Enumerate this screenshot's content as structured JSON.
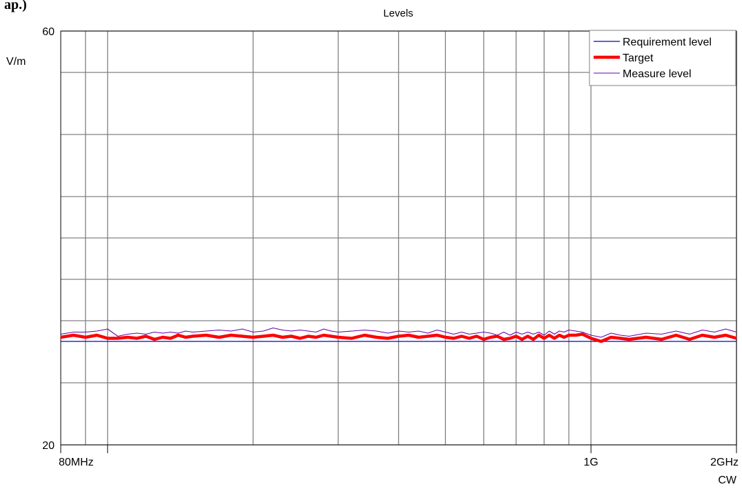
{
  "corner_text": "ap.)",
  "chart_data": {
    "type": "line",
    "title": "Levels",
    "ylabel": "V/m",
    "y_ticks": [
      {
        "v": 20,
        "label": "20"
      },
      {
        "v": 60,
        "label": "60"
      }
    ],
    "ylim": [
      20,
      60
    ],
    "x_scale": "log",
    "xlim": [
      80,
      2000
    ],
    "x_tick_labels": [
      {
        "v": 80,
        "label": "80MHz"
      },
      {
        "v": 1000,
        "label": "1G"
      },
      {
        "v": 2000,
        "label": "2GHz"
      }
    ],
    "x_unit_note": "CW",
    "x_gridlines_mhz": [
      90,
      100,
      200,
      300,
      400,
      500,
      600,
      700,
      800,
      900,
      1000,
      2000
    ],
    "y_gridlines": [
      20,
      26,
      32,
      36,
      40,
      44,
      50,
      56,
      60
    ],
    "legend": {
      "position": "top-right",
      "entries": [
        "Requirement level",
        "Target",
        "Measure level"
      ]
    },
    "colors": {
      "requirement": "#0000cc",
      "target": "#ff0000",
      "measure": "#6a00a8",
      "grid": "#808080"
    },
    "series": [
      {
        "name": "Requirement level",
        "x": [
          80,
          2000
        ],
        "y": [
          30,
          30
        ]
      },
      {
        "name": "Target",
        "x": [
          80,
          85,
          90,
          95,
          100,
          105,
          110,
          115,
          120,
          125,
          130,
          135,
          140,
          145,
          150,
          160,
          170,
          180,
          190,
          200,
          210,
          220,
          230,
          240,
          250,
          260,
          270,
          280,
          290,
          300,
          320,
          340,
          360,
          380,
          400,
          420,
          440,
          460,
          480,
          500,
          520,
          540,
          560,
          580,
          600,
          620,
          640,
          660,
          680,
          700,
          720,
          740,
          760,
          780,
          800,
          820,
          840,
          860,
          880,
          900,
          930,
          960,
          1000,
          1050,
          1100,
          1150,
          1200,
          1300,
          1400,
          1500,
          1600,
          1700,
          1800,
          1900,
          2000
        ],
        "y": [
          30.4,
          30.6,
          30.4,
          30.6,
          30.3,
          30.3,
          30.4,
          30.3,
          30.5,
          30.2,
          30.4,
          30.3,
          30.6,
          30.4,
          30.5,
          30.6,
          30.4,
          30.6,
          30.5,
          30.4,
          30.5,
          30.6,
          30.4,
          30.5,
          30.3,
          30.5,
          30.4,
          30.6,
          30.5,
          30.4,
          30.3,
          30.6,
          30.4,
          30.3,
          30.5,
          30.6,
          30.4,
          30.5,
          30.6,
          30.4,
          30.3,
          30.5,
          30.3,
          30.5,
          30.2,
          30.4,
          30.5,
          30.2,
          30.3,
          30.5,
          30.2,
          30.5,
          30.2,
          30.6,
          30.3,
          30.6,
          30.3,
          30.6,
          30.4,
          30.6,
          30.6,
          30.7,
          30.3,
          30.0,
          30.4,
          30.3,
          30.2,
          30.4,
          30.2,
          30.6,
          30.2,
          30.6,
          30.4,
          30.6,
          30.3
        ]
      },
      {
        "name": "Measure level",
        "x": [
          80,
          85,
          90,
          95,
          100,
          105,
          110,
          115,
          120,
          125,
          130,
          135,
          140,
          145,
          150,
          160,
          170,
          180,
          190,
          200,
          210,
          220,
          230,
          240,
          250,
          260,
          270,
          280,
          290,
          300,
          320,
          340,
          360,
          380,
          400,
          420,
          440,
          460,
          480,
          500,
          520,
          540,
          560,
          580,
          600,
          620,
          640,
          660,
          680,
          700,
          720,
          740,
          760,
          780,
          800,
          820,
          840,
          860,
          880,
          900,
          930,
          960,
          1000,
          1050,
          1100,
          1150,
          1200,
          1300,
          1400,
          1500,
          1600,
          1700,
          1800,
          1900,
          2000
        ],
        "y": [
          30.7,
          30.9,
          30.9,
          31.0,
          31.2,
          30.5,
          30.7,
          30.8,
          30.7,
          30.9,
          30.8,
          30.9,
          30.8,
          31.0,
          30.9,
          31.0,
          31.1,
          31.0,
          31.2,
          30.9,
          31.0,
          31.3,
          31.1,
          31.0,
          31.1,
          31.0,
          30.9,
          31.2,
          31.0,
          30.9,
          31.0,
          31.1,
          31.0,
          30.8,
          31.0,
          30.9,
          31.0,
          30.8,
          31.1,
          30.9,
          30.7,
          30.9,
          30.7,
          30.8,
          30.9,
          30.8,
          30.6,
          30.9,
          30.6,
          30.9,
          30.7,
          30.9,
          30.7,
          30.9,
          30.6,
          31.0,
          30.7,
          31.0,
          30.9,
          31.1,
          31.0,
          30.9,
          30.6,
          30.4,
          30.8,
          30.6,
          30.5,
          30.8,
          30.7,
          31.0,
          30.7,
          31.1,
          30.9,
          31.2,
          30.9
        ]
      }
    ]
  }
}
